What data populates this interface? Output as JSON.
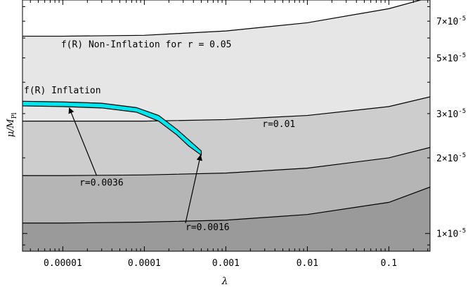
{
  "chart_data": {
    "type": "area",
    "x_scale": "log",
    "y_scale": "log",
    "xlim": [
      3.2e-06,
      0.32
    ],
    "ylim": [
      8.5e-06,
      8.5e-05
    ],
    "xlabel": "λ",
    "ylabel": "μ/M_Pl",
    "ylabel_main": "μ/M",
    "ylabel_sub": "Pl",
    "x_ticks": [
      {
        "value": 1e-05,
        "label": "0.00001"
      },
      {
        "value": 0.0001,
        "label": "0.0001"
      },
      {
        "value": 0.001,
        "label": "0.001"
      },
      {
        "value": 0.01,
        "label": "0.01"
      },
      {
        "value": 0.1,
        "label": "0.1"
      }
    ],
    "y_ticks": [
      {
        "value": 1e-05,
        "mantissa": "1",
        "exp": "-5"
      },
      {
        "value": 2e-05,
        "mantissa": "2",
        "exp": "-5"
      },
      {
        "value": 3e-05,
        "mantissa": "3",
        "exp": "-5"
      },
      {
        "value": 5e-05,
        "mantissa": "5",
        "exp": "-5"
      },
      {
        "value": 7e-05,
        "mantissa": "7",
        "exp": "-5"
      }
    ],
    "boundaries": [
      {
        "name": "r = 0.05",
        "color": "#e6e6e6",
        "points": [
          [
            3.2e-06,
            6.1e-05
          ],
          [
            1e-05,
            6.1e-05
          ],
          [
            0.0001,
            6.15e-05
          ],
          [
            0.001,
            6.4e-05
          ],
          [
            0.01,
            6.9e-05
          ],
          [
            0.1,
            7.85e-05
          ],
          [
            0.32,
            8.7e-05
          ]
        ]
      },
      {
        "name": "r=0.01",
        "color": "#cdcdcd",
        "points": [
          [
            3.2e-06,
            2.8e-05
          ],
          [
            1e-05,
            2.8e-05
          ],
          [
            0.0001,
            2.8e-05
          ],
          [
            0.001,
            2.84e-05
          ],
          [
            0.01,
            2.95e-05
          ],
          [
            0.1,
            3.2e-05
          ],
          [
            0.32,
            3.5e-05
          ]
        ]
      },
      {
        "name": "r=0.0036",
        "color": "#b5b5b5",
        "points": [
          [
            3.2e-06,
            1.7e-05
          ],
          [
            1e-05,
            1.7e-05
          ],
          [
            0.0001,
            1.71e-05
          ],
          [
            0.001,
            1.74e-05
          ],
          [
            0.01,
            1.82e-05
          ],
          [
            0.1,
            2e-05
          ],
          [
            0.32,
            2.2e-05
          ]
        ]
      },
      {
        "name": "r=0.0016",
        "color": "#9a9a9a",
        "points": [
          [
            3.2e-06,
            1.1e-05
          ],
          [
            1e-05,
            1.1e-05
          ],
          [
            0.0001,
            1.11e-05
          ],
          [
            0.001,
            1.13e-05
          ],
          [
            0.01,
            1.19e-05
          ],
          [
            0.1,
            1.33e-05
          ],
          [
            0.32,
            1.53e-05
          ]
        ]
      }
    ],
    "inflation_band": {
      "label": "f(R) Inflation",
      "color": "#00e5ee",
      "upper": [
        [
          3.2e-06,
          3.36e-05
        ],
        [
          1e-05,
          3.34e-05
        ],
        [
          3e-05,
          3.3e-05
        ],
        [
          8e-05,
          3.17e-05
        ],
        [
          0.00015,
          2.95e-05
        ],
        [
          0.00025,
          2.6e-05
        ],
        [
          0.00035,
          2.36e-05
        ],
        [
          0.0005,
          2.13e-05
        ]
      ],
      "lower": [
        [
          0.0005,
          2.05e-05
        ],
        [
          0.00035,
          2.23e-05
        ],
        [
          0.00025,
          2.47e-05
        ],
        [
          0.00015,
          2.8e-05
        ],
        [
          8e-05,
          3.04e-05
        ],
        [
          3e-05,
          3.16e-05
        ],
        [
          1e-05,
          3.2e-05
        ],
        [
          3.2e-06,
          3.22e-05
        ]
      ]
    },
    "annotations": [
      {
        "text": "f(R) Non-Inflation for r = 0.05",
        "x": 9.5e-06,
        "y": 5.5e-05
      },
      {
        "text": "r=0.01",
        "x": 0.0028,
        "y": 2.65e-05
      },
      {
        "text": "r=0.0036",
        "x": 1.6e-05,
        "y": 1.55e-05
      },
      {
        "text": "r=0.0016",
        "x": 0.00032,
        "y": 1.03e-05
      }
    ],
    "arrows": [
      {
        "from": [
          2.6e-05,
          1.7e-05
        ],
        "to": [
          1.2e-05,
          3.16e-05
        ]
      },
      {
        "from": [
          0.00032,
          1.1e-05
        ],
        "to": [
          0.00049,
          2.05e-05
        ]
      }
    ]
  }
}
